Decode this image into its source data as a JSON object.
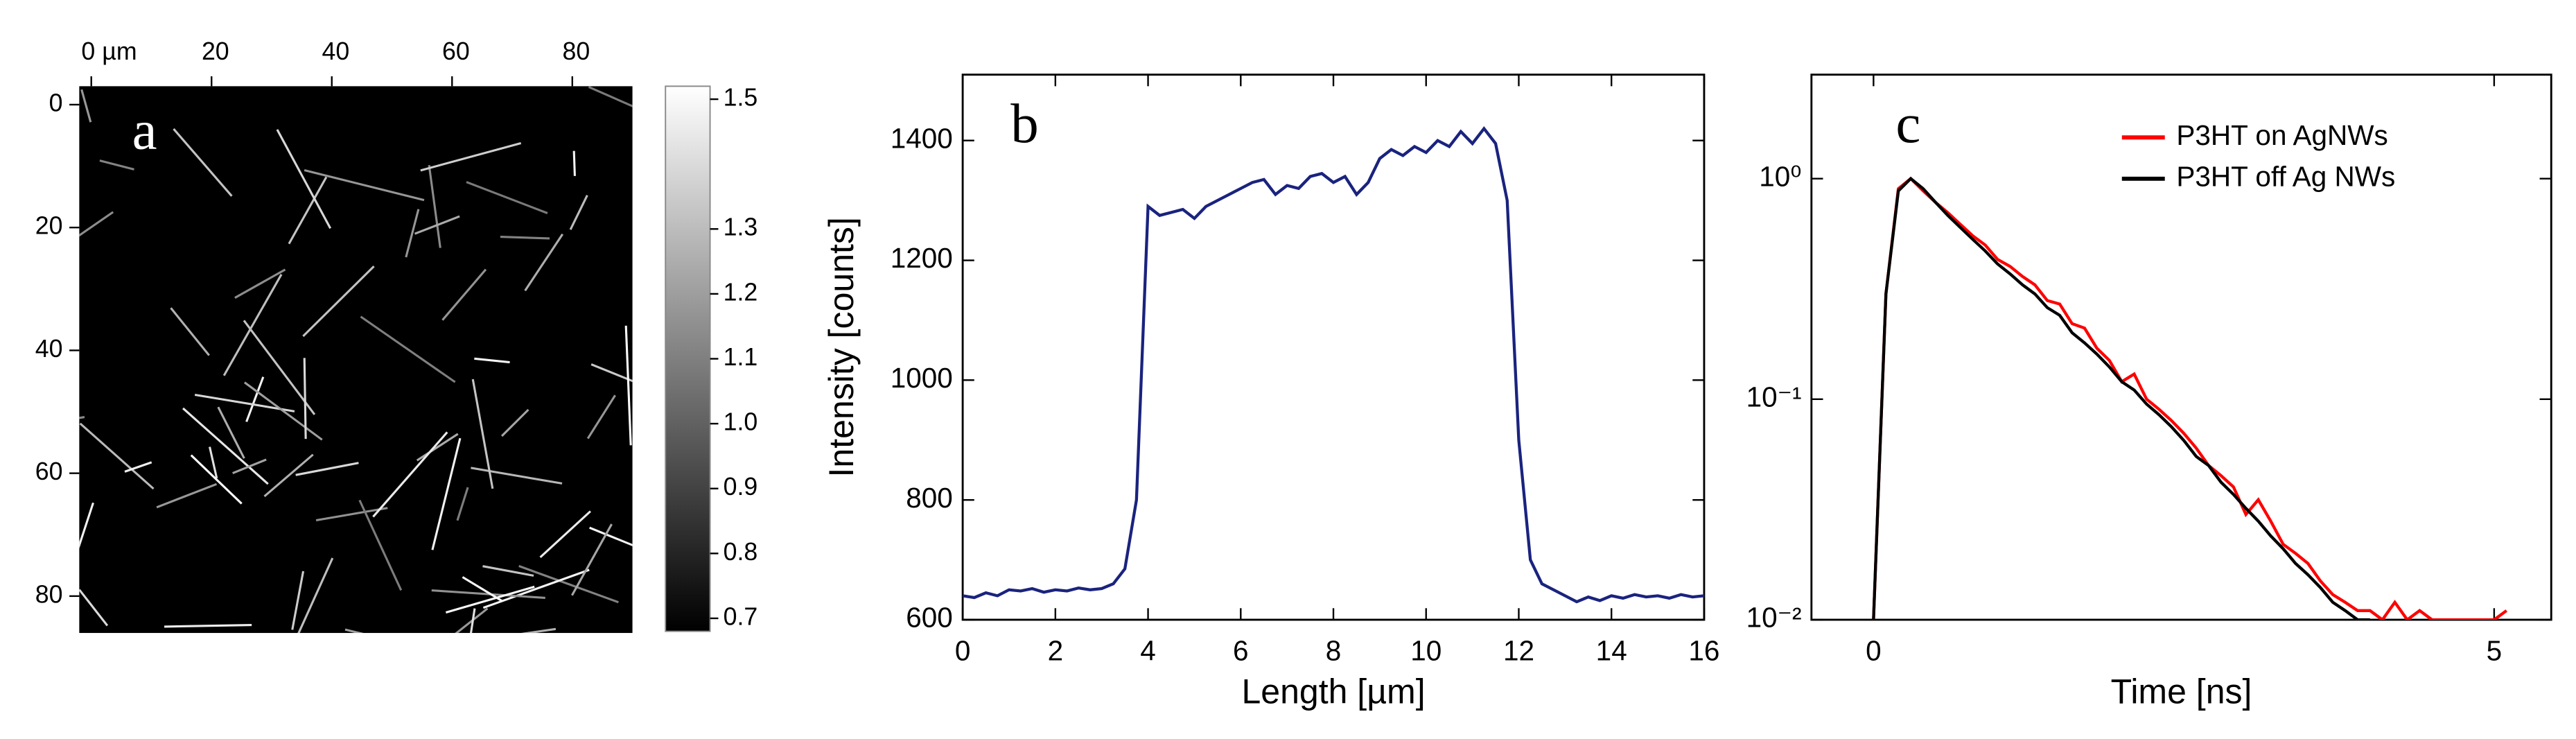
{
  "chart_data": [
    {
      "type": "image",
      "label": "a",
      "xticks": [
        {
          "value": 0,
          "label": "0 µm"
        },
        20,
        40,
        60,
        80
      ],
      "xlim": [
        -2,
        90
      ],
      "yticks": [
        0,
        20,
        40,
        60,
        80
      ],
      "ylim": [
        -3,
        86
      ],
      "colorbar": {
        "ticks": [
          1.5,
          1.3,
          1.2,
          1.1,
          {
            "value": 1,
            "label": "1.0"
          },
          0.9,
          0.8,
          0.7
        ],
        "lim": [
          0.68,
          1.52
        ]
      }
    },
    {
      "type": "line",
      "label": "b",
      "xlabel": "Length [µm]",
      "ylabel": "Intensity [counts]",
      "color": "#1a237e",
      "x": [
        0,
        0.25,
        0.5,
        0.75,
        1,
        1.25,
        1.5,
        1.75,
        2,
        2.25,
        2.5,
        2.75,
        3,
        3.25,
        3.5,
        3.75,
        4,
        4.25,
        4.5,
        4.75,
        5,
        5.25,
        5.5,
        5.75,
        6,
        6.25,
        6.5,
        6.75,
        7,
        7.25,
        7.5,
        7.75,
        8,
        8.25,
        8.5,
        8.75,
        9,
        9.25,
        9.5,
        9.75,
        10,
        10.25,
        10.5,
        10.75,
        11,
        11.25,
        11.5,
        11.75,
        12,
        12.25,
        12.5,
        12.75,
        13,
        13.25,
        13.5,
        13.75,
        14,
        14.25,
        14.5,
        14.75,
        15,
        15.25,
        15.5,
        15.75,
        16
      ],
      "values": [
        640,
        637,
        645,
        640,
        650,
        648,
        652,
        646,
        650,
        648,
        653,
        650,
        652,
        660,
        685,
        800,
        1290,
        1275,
        1280,
        1285,
        1270,
        1290,
        1300,
        1310,
        1320,
        1330,
        1335,
        1310,
        1325,
        1320,
        1340,
        1345,
        1330,
        1340,
        1310,
        1330,
        1370,
        1385,
        1375,
        1390,
        1380,
        1400,
        1390,
        1415,
        1395,
        1420,
        1395,
        1300,
        900,
        700,
        660,
        650,
        640,
        630,
        638,
        632,
        640,
        636,
        642,
        638,
        640,
        636,
        642,
        638,
        640
      ],
      "xlim": [
        0,
        16
      ],
      "xticks": [
        0,
        2,
        4,
        6,
        8,
        10,
        12,
        14,
        16
      ],
      "ylim": [
        600,
        1510
      ],
      "yticks": [
        600,
        800,
        1000,
        1200,
        1400
      ]
    },
    {
      "type": "line",
      "label": "c",
      "xlabel": "Time [ns]",
      "ylog": true,
      "legend": "upper right",
      "x": [
        0,
        0.1,
        0.2,
        0.3,
        0.4,
        0.5,
        0.6,
        0.7,
        0.8,
        0.9,
        1,
        1.1,
        1.2,
        1.3,
        1.4,
        1.5,
        1.6,
        1.7,
        1.8,
        1.9,
        2,
        2.1,
        2.2,
        2.3,
        2.4,
        2.5,
        2.6,
        2.7,
        2.8,
        2.9,
        3,
        3.1,
        3.2,
        3.3,
        3.4,
        3.5,
        3.6,
        3.7,
        3.8,
        3.9,
        4,
        4.1,
        4.2,
        4.3,
        4.4,
        4.5,
        4.6,
        4.7,
        4.8,
        4.9,
        5,
        5.1
      ],
      "series": [
        {
          "name": "P3HT on AgNWs",
          "color": "#ff0000",
          "values": [
            0.01,
            0.3,
            0.9,
            1.0,
            0.88,
            0.78,
            0.7,
            0.62,
            0.55,
            0.5,
            0.43,
            0.4,
            0.36,
            0.33,
            0.28,
            0.27,
            0.22,
            0.21,
            0.17,
            0.15,
            0.12,
            0.13,
            0.1,
            0.09,
            0.08,
            0.07,
            0.06,
            0.05,
            0.045,
            0.04,
            0.03,
            0.035,
            0.028,
            0.022,
            0.02,
            0.018,
            0.015,
            0.013,
            0.012,
            0.011,
            0.011,
            0.01,
            0.012,
            0.01,
            0.011,
            0.01,
            0.01,
            0.01,
            0.01,
            0.01,
            0.01,
            0.011
          ]
        },
        {
          "name": "P3HT off Ag NWs",
          "color": "#000000",
          "values": [
            0.01,
            0.3,
            0.88,
            1.0,
            0.9,
            0.78,
            0.68,
            0.6,
            0.53,
            0.47,
            0.41,
            0.37,
            0.33,
            0.3,
            0.26,
            0.24,
            0.2,
            0.18,
            0.16,
            0.14,
            0.12,
            0.11,
            0.095,
            0.085,
            0.075,
            0.065,
            0.055,
            0.05,
            0.042,
            0.037,
            0.032,
            0.028,
            0.024,
            0.021,
            0.018,
            0.016,
            0.014,
            0.012,
            0.011,
            0.01,
            0.01,
            null,
            null,
            null,
            null,
            null,
            null,
            null,
            null,
            null,
            null,
            null
          ]
        }
      ],
      "xlim": [
        -0.5,
        5.46
      ],
      "xticks": [
        0,
        5
      ],
      "ylim": [
        0.01,
        2.96
      ],
      "yticks": [
        {
          "value": 0.01,
          "label": "10⁻²"
        },
        {
          "value": 0.1,
          "label": "10⁻¹"
        },
        {
          "value": 1,
          "label": "10⁰"
        }
      ]
    }
  ]
}
